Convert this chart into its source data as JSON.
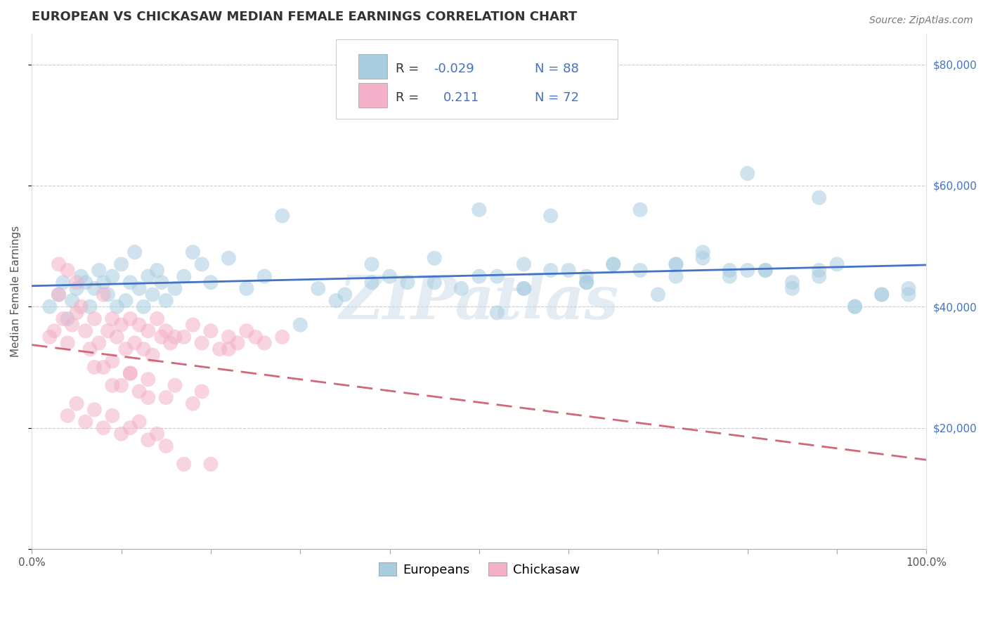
{
  "title": "EUROPEAN VS CHICKASAW MEDIAN FEMALE EARNINGS CORRELATION CHART",
  "source": "Source: ZipAtlas.com",
  "ylabel": "Median Female Earnings",
  "xlim": [
    0.0,
    1.0
  ],
  "ylim": [
    0,
    85000
  ],
  "yticks": [
    0,
    20000,
    40000,
    60000,
    80000
  ],
  "ytick_labels": [
    "",
    "$20,000",
    "$40,000",
    "$60,000",
    "$80,000"
  ],
  "xtick_labels": [
    "0.0%",
    "100.0%"
  ],
  "xticks_minor": [
    0.0,
    0.1,
    0.2,
    0.3,
    0.4,
    0.5,
    0.6,
    0.7,
    0.8,
    0.9,
    1.0
  ],
  "legend_labels": [
    "Europeans",
    "Chickasaw"
  ],
  "blue_scatter_color": "#a8cce0",
  "pink_scatter_color": "#f4b0c8",
  "blue_line_color": "#4472c4",
  "pink_line_color": "#d06878",
  "r_value_color": "#4472c4",
  "watermark": "ZIPatlas",
  "title_fontsize": 13,
  "source_fontsize": 10,
  "axis_label_fontsize": 11,
  "tick_fontsize": 11,
  "legend_fontsize": 13,
  "blue_x": [
    0.02,
    0.03,
    0.035,
    0.04,
    0.045,
    0.05,
    0.055,
    0.06,
    0.065,
    0.07,
    0.075,
    0.08,
    0.085,
    0.09,
    0.095,
    0.1,
    0.105,
    0.11,
    0.115,
    0.12,
    0.125,
    0.13,
    0.135,
    0.14,
    0.145,
    0.15,
    0.16,
    0.17,
    0.18,
    0.19,
    0.2,
    0.22,
    0.24,
    0.26,
    0.3,
    0.32,
    0.34,
    0.38,
    0.4,
    0.42,
    0.45,
    0.48,
    0.5,
    0.52,
    0.55,
    0.58,
    0.6,
    0.62,
    0.65,
    0.68,
    0.7,
    0.72,
    0.75,
    0.78,
    0.8,
    0.82,
    0.85,
    0.88,
    0.9,
    0.28,
    0.35,
    0.38,
    0.45,
    0.52,
    0.55,
    0.58,
    0.62,
    0.65,
    0.72,
    0.75,
    0.78,
    0.82,
    0.85,
    0.88,
    0.92,
    0.95,
    0.98,
    0.5,
    0.55,
    0.62,
    0.68,
    0.72,
    0.8,
    0.88,
    0.92,
    0.95,
    0.98
  ],
  "blue_y": [
    40000,
    42000,
    44000,
    38000,
    41000,
    43000,
    45000,
    44000,
    40000,
    43000,
    46000,
    44000,
    42000,
    45000,
    40000,
    47000,
    41000,
    44000,
    49000,
    43000,
    40000,
    45000,
    42000,
    46000,
    44000,
    41000,
    43000,
    45000,
    49000,
    47000,
    44000,
    48000,
    43000,
    45000,
    37000,
    43000,
    41000,
    47000,
    45000,
    44000,
    48000,
    43000,
    45000,
    39000,
    43000,
    55000,
    46000,
    45000,
    47000,
    56000,
    42000,
    47000,
    49000,
    45000,
    62000,
    46000,
    44000,
    58000,
    47000,
    55000,
    42000,
    44000,
    44000,
    45000,
    43000,
    46000,
    44000,
    47000,
    45000,
    48000,
    46000,
    46000,
    43000,
    45000,
    40000,
    42000,
    43000,
    56000,
    47000,
    44000,
    46000,
    47000,
    46000,
    46000,
    40000,
    42000,
    42000
  ],
  "pink_x": [
    0.02,
    0.025,
    0.03,
    0.035,
    0.04,
    0.045,
    0.05,
    0.055,
    0.06,
    0.065,
    0.07,
    0.075,
    0.08,
    0.085,
    0.09,
    0.095,
    0.1,
    0.105,
    0.11,
    0.115,
    0.12,
    0.125,
    0.13,
    0.135,
    0.14,
    0.145,
    0.15,
    0.155,
    0.16,
    0.17,
    0.18,
    0.19,
    0.2,
    0.21,
    0.22,
    0.23,
    0.24,
    0.25,
    0.26,
    0.28,
    0.08,
    0.09,
    0.1,
    0.11,
    0.12,
    0.13,
    0.15,
    0.16,
    0.18,
    0.19,
    0.07,
    0.09,
    0.11,
    0.13,
    0.04,
    0.05,
    0.06,
    0.07,
    0.08,
    0.09,
    0.1,
    0.11,
    0.12,
    0.13,
    0.14,
    0.15,
    0.03,
    0.04,
    0.05,
    0.17,
    0.2,
    0.22
  ],
  "pink_y": [
    35000,
    36000,
    42000,
    38000,
    34000,
    37000,
    39000,
    40000,
    36000,
    33000,
    38000,
    34000,
    42000,
    36000,
    38000,
    35000,
    37000,
    33000,
    38000,
    34000,
    37000,
    33000,
    36000,
    32000,
    38000,
    35000,
    36000,
    34000,
    35000,
    35000,
    37000,
    34000,
    36000,
    33000,
    35000,
    34000,
    36000,
    35000,
    34000,
    35000,
    30000,
    31000,
    27000,
    29000,
    26000,
    28000,
    25000,
    27000,
    24000,
    26000,
    30000,
    27000,
    29000,
    25000,
    22000,
    24000,
    21000,
    23000,
    20000,
    22000,
    19000,
    20000,
    21000,
    18000,
    19000,
    17000,
    47000,
    46000,
    44000,
    14000,
    14000,
    33000
  ]
}
